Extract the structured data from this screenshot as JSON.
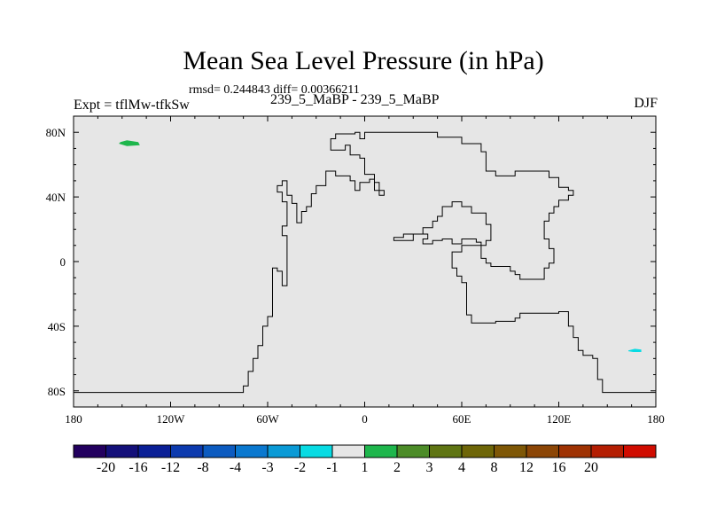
{
  "chart_data": {
    "type": "contour-map",
    "title": "Mean Sea Level Pressure (in hPa)",
    "stats": "rmsd= 0.244843 diff= 0.00366211",
    "left_label": "Expt = tflMw-tfkSw",
    "center_label": "239_5_MaBP - 239_5_MaBP",
    "right_label": "DJF",
    "projection": "cylindrical-equidistant",
    "lon_range": [
      -180,
      180
    ],
    "lat_range": [
      -90,
      90
    ],
    "background": "#e6e6e6",
    "x_ticks": [
      {
        "value": -180,
        "label": "180"
      },
      {
        "value": -120,
        "label": "120W"
      },
      {
        "value": -60,
        "label": "60W"
      },
      {
        "value": 0,
        "label": "0"
      },
      {
        "value": 60,
        "label": "60E"
      },
      {
        "value": 120,
        "label": "120E"
      },
      {
        "value": 180,
        "label": "180"
      }
    ],
    "y_ticks": [
      {
        "value": 80,
        "label": "80N"
      },
      {
        "value": 40,
        "label": "40N"
      },
      {
        "value": 0,
        "label": "0"
      },
      {
        "value": -40,
        "label": "40S"
      },
      {
        "value": -80,
        "label": "80S"
      }
    ],
    "colorbar": {
      "colors": [
        "#23005f",
        "#14107a",
        "#0a1f96",
        "#0c3aae",
        "#0c5bc0",
        "#0a78cf",
        "#0a9ad6",
        "#08dbe3",
        "#e6e6e6",
        "#1eb64c",
        "#4c8c28",
        "#5f7513",
        "#6e6608",
        "#7e5706",
        "#8c4606",
        "#9f3203",
        "#b41e02",
        "#d00c00"
      ],
      "levels": [
        "-20",
        "-16",
        "-12",
        "-8",
        "-4",
        "-3",
        "-2",
        "-1",
        "1",
        "2",
        "3",
        "4",
        "8",
        "12",
        "16",
        "20"
      ]
    },
    "anomalies": [
      {
        "name": "positive-anomaly-high-lat",
        "color": "#1eb64c",
        "points": [
          [
            -151,
            74
          ],
          [
            -147,
            75
          ],
          [
            -140,
            74
          ],
          [
            -139,
            72
          ],
          [
            -147,
            71.5
          ],
          [
            -152,
            73
          ]
        ]
      },
      {
        "name": "negative-anomaly-southern",
        "color": "#08dbe3",
        "points": [
          [
            163,
            -55
          ],
          [
            167,
            -54
          ],
          [
            171,
            -54.5
          ],
          [
            171,
            -56
          ],
          [
            166,
            -56
          ],
          [
            163,
            -55.5
          ]
        ]
      }
    ],
    "coastlines": [
      [
        [
          -180,
          -81
        ],
        [
          -75,
          -81
        ],
        [
          -75,
          -77
        ],
        [
          -72,
          -77
        ],
        [
          -72,
          -68
        ],
        [
          -69,
          -68
        ],
        [
          -69,
          -60
        ],
        [
          -66,
          -60
        ],
        [
          -66,
          -52
        ],
        [
          -63,
          -52
        ],
        [
          -63,
          -40
        ],
        [
          -60,
          -40
        ],
        [
          -60,
          -34
        ],
        [
          -57,
          -34
        ],
        [
          -57,
          -4
        ],
        [
          -54,
          -4
        ],
        [
          -54,
          -6
        ],
        [
          -51,
          -6
        ],
        [
          -51,
          -15
        ],
        [
          -48,
          -15
        ],
        [
          -48,
          16
        ],
        [
          -51,
          16
        ],
        [
          -51,
          22
        ],
        [
          -48,
          22
        ],
        [
          -48,
          37
        ],
        [
          -51,
          37
        ],
        [
          -51,
          43
        ],
        [
          -54,
          43
        ],
        [
          -54,
          47
        ],
        [
          -51,
          47
        ],
        [
          -51,
          50
        ],
        [
          -48,
          50
        ],
        [
          -48,
          41
        ],
        [
          -45,
          41
        ],
        [
          -45,
          36
        ],
        [
          -42,
          36
        ],
        [
          -42,
          24
        ],
        [
          -39,
          24
        ],
        [
          -39,
          31
        ],
        [
          -36,
          31
        ],
        [
          -36,
          34
        ],
        [
          -33,
          34
        ],
        [
          -33,
          42
        ],
        [
          -30,
          42
        ],
        [
          -30,
          47
        ],
        [
          -24,
          47
        ],
        [
          -24,
          56
        ],
        [
          -18,
          56
        ],
        [
          -18,
          53
        ],
        [
          -9,
          53
        ],
        [
          -9,
          50
        ],
        [
          -6,
          50
        ],
        [
          -6,
          44
        ],
        [
          -3,
          44
        ],
        [
          -3,
          49
        ],
        [
          3,
          49
        ],
        [
          3,
          51
        ],
        [
          6,
          51
        ],
        [
          6,
          44
        ],
        [
          9,
          44
        ],
        [
          9,
          41
        ],
        [
          12,
          41
        ],
        [
          12,
          44
        ],
        [
          9,
          44
        ],
        [
          9,
          49
        ],
        [
          6,
          49
        ],
        [
          6,
          54
        ],
        [
          0,
          54
        ],
        [
          0,
          64
        ],
        [
          -3,
          64
        ],
        [
          -3,
          66
        ],
        [
          -9,
          66
        ],
        [
          -9,
          72
        ],
        [
          -12,
          72
        ],
        [
          -12,
          69
        ],
        [
          -21,
          69
        ],
        [
          -21,
          76
        ],
        [
          -18,
          76
        ],
        [
          -18,
          79
        ],
        [
          -6,
          79
        ],
        [
          -6,
          80
        ],
        [
          -3,
          80
        ],
        [
          -3,
          76
        ],
        [
          0,
          76
        ],
        [
          0,
          80
        ],
        [
          45,
          80
        ],
        [
          45,
          77
        ],
        [
          60,
          77
        ],
        [
          60,
          73
        ],
        [
          72,
          73
        ],
        [
          72,
          68
        ],
        [
          75,
          68
        ],
        [
          75,
          56
        ],
        [
          81,
          56
        ],
        [
          81,
          53
        ],
        [
          93,
          53
        ],
        [
          93,
          56
        ],
        [
          114,
          56
        ],
        [
          114,
          52
        ],
        [
          120,
          52
        ],
        [
          120,
          46
        ],
        [
          126,
          46
        ],
        [
          126,
          44
        ],
        [
          129,
          44
        ],
        [
          129,
          41
        ],
        [
          126,
          41
        ],
        [
          126,
          38
        ],
        [
          120,
          38
        ],
        [
          120,
          34
        ],
        [
          117,
          34
        ],
        [
          117,
          30
        ],
        [
          114,
          30
        ],
        [
          114,
          25
        ],
        [
          111,
          25
        ],
        [
          111,
          14
        ],
        [
          114,
          14
        ],
        [
          114,
          8
        ],
        [
          117,
          8
        ],
        [
          117,
          -1
        ],
        [
          114,
          -1
        ],
        [
          114,
          -4
        ],
        [
          111,
          -4
        ],
        [
          111,
          -11
        ],
        [
          96,
          -11
        ],
        [
          96,
          -8
        ],
        [
          93,
          -8
        ],
        [
          93,
          -6
        ],
        [
          90,
          -6
        ],
        [
          90,
          -3
        ],
        [
          78,
          -3
        ],
        [
          78,
          -1
        ],
        [
          75,
          -1
        ],
        [
          75,
          2
        ],
        [
          72,
          2
        ],
        [
          72,
          12
        ],
        [
          69,
          12
        ],
        [
          69,
          14
        ],
        [
          60,
          14
        ],
        [
          60,
          11
        ],
        [
          54,
          11
        ],
        [
          54,
          14
        ],
        [
          48,
          14
        ],
        [
          48,
          13
        ],
        [
          42,
          13
        ],
        [
          42,
          11
        ],
        [
          36,
          11
        ],
        [
          36,
          14
        ],
        [
          39,
          14
        ],
        [
          39,
          17
        ],
        [
          30,
          17
        ],
        [
          30,
          13
        ],
        [
          18,
          13
        ],
        [
          18,
          15
        ],
        [
          24,
          15
        ],
        [
          24,
          17
        ],
        [
          36,
          17
        ],
        [
          36,
          21
        ],
        [
          42,
          21
        ],
        [
          42,
          25
        ],
        [
          45,
          25
        ],
        [
          45,
          28
        ],
        [
          48,
          28
        ],
        [
          48,
          34
        ],
        [
          54,
          34
        ],
        [
          54,
          37
        ],
        [
          60,
          37
        ],
        [
          60,
          34
        ],
        [
          66,
          34
        ],
        [
          66,
          30
        ],
        [
          75,
          30
        ],
        [
          75,
          23
        ],
        [
          78,
          23
        ],
        [
          78,
          13
        ],
        [
          75,
          13
        ],
        [
          75,
          10
        ],
        [
          60,
          10
        ],
        [
          60,
          6
        ],
        [
          54,
          6
        ],
        [
          54,
          -4
        ],
        [
          57,
          -4
        ],
        [
          57,
          -9
        ],
        [
          60,
          -9
        ],
        [
          60,
          -13
        ],
        [
          63,
          -13
        ],
        [
          63,
          -33
        ],
        [
          66,
          -33
        ],
        [
          66,
          -38
        ],
        [
          81,
          -38
        ],
        [
          81,
          -37
        ],
        [
          93,
          -37
        ],
        [
          93,
          -35
        ],
        [
          96,
          -35
        ],
        [
          96,
          -32
        ],
        [
          120,
          -32
        ],
        [
          120,
          -31
        ],
        [
          126,
          -31
        ],
        [
          126,
          -40
        ],
        [
          129,
          -40
        ],
        [
          129,
          -47
        ],
        [
          132,
          -47
        ],
        [
          132,
          -55
        ],
        [
          135,
          -55
        ],
        [
          135,
          -58
        ],
        [
          141,
          -58
        ],
        [
          141,
          -60
        ],
        [
          144,
          -60
        ],
        [
          144,
          -73
        ],
        [
          147,
          -73
        ],
        [
          147,
          -81
        ],
        [
          180,
          -81
        ]
      ]
    ]
  }
}
